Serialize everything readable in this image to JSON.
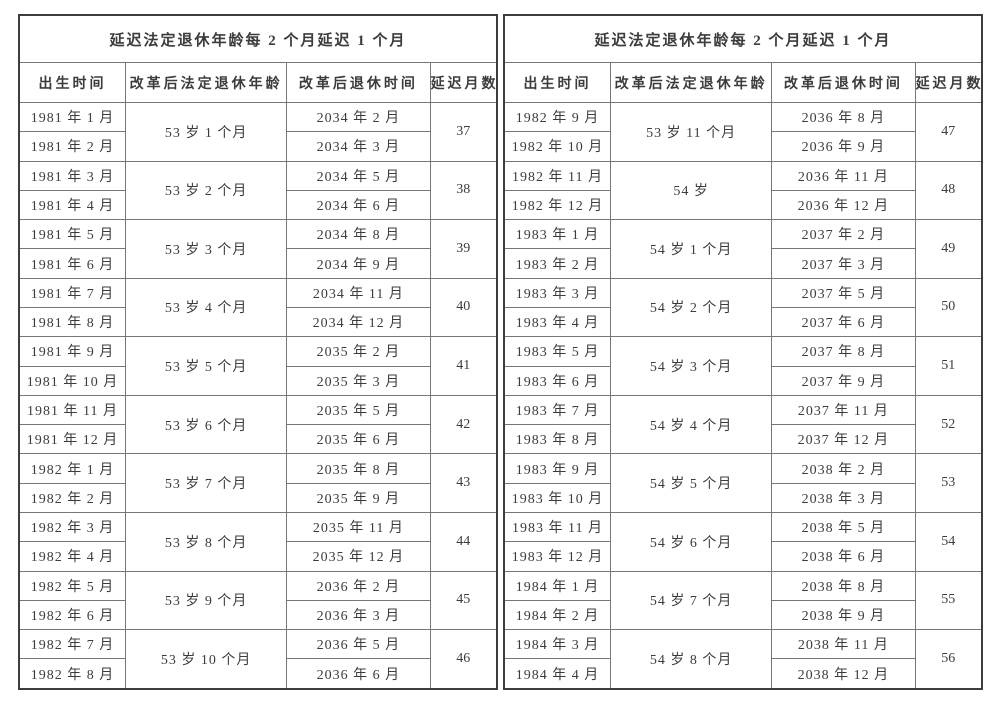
{
  "style": {
    "background": "#ffffff",
    "outer_border_color": "#3d3d3d",
    "inner_border_color": "#767676",
    "text_color": "#3c3c3c"
  },
  "tables": [
    {
      "title": "延迟法定退休年龄每 2 个月延迟 1 个月",
      "headers": [
        "出生时间",
        "改革后法定退休年龄",
        "改革后退休时间",
        "延迟月数"
      ],
      "groups": [
        {
          "births": [
            "1981 年 1 月",
            "1981 年 2 月"
          ],
          "age": "53 岁 1 个月",
          "retires": [
            "2034 年 2 月",
            "2034 年 3 月"
          ],
          "delay": "37"
        },
        {
          "births": [
            "1981 年 3 月",
            "1981 年 4 月"
          ],
          "age": "53 岁 2 个月",
          "retires": [
            "2034 年 5 月",
            "2034 年 6 月"
          ],
          "delay": "38"
        },
        {
          "births": [
            "1981 年 5 月",
            "1981 年 6 月"
          ],
          "age": "53 岁 3 个月",
          "retires": [
            "2034 年 8 月",
            "2034 年 9 月"
          ],
          "delay": "39"
        },
        {
          "births": [
            "1981 年 7 月",
            "1981 年 8 月"
          ],
          "age": "53 岁 4 个月",
          "retires": [
            "2034 年 11 月",
            "2034 年 12 月"
          ],
          "delay": "40"
        },
        {
          "births": [
            "1981 年 9 月",
            "1981 年 10 月"
          ],
          "age": "53 岁 5 个月",
          "retires": [
            "2035 年 2 月",
            "2035 年 3 月"
          ],
          "delay": "41"
        },
        {
          "births": [
            "1981 年 11 月",
            "1981 年 12 月"
          ],
          "age": "53 岁 6 个月",
          "retires": [
            "2035 年 5 月",
            "2035 年 6 月"
          ],
          "delay": "42"
        },
        {
          "births": [
            "1982 年 1 月",
            "1982 年 2 月"
          ],
          "age": "53 岁 7 个月",
          "retires": [
            "2035 年 8 月",
            "2035 年 9 月"
          ],
          "delay": "43"
        },
        {
          "births": [
            "1982 年 3 月",
            "1982 年 4 月"
          ],
          "age": "53 岁 8 个月",
          "retires": [
            "2035 年 11 月",
            "2035 年 12 月"
          ],
          "delay": "44"
        },
        {
          "births": [
            "1982 年 5 月",
            "1982 年 6 月"
          ],
          "age": "53 岁 9 个月",
          "retires": [
            "2036 年 2 月",
            "2036 年 3 月"
          ],
          "delay": "45"
        },
        {
          "births": [
            "1982 年 7 月",
            "1982 年 8 月"
          ],
          "age": "53 岁 10 个月",
          "retires": [
            "2036 年 5 月",
            "2036 年 6 月"
          ],
          "delay": "46"
        }
      ]
    },
    {
      "title": "延迟法定退休年龄每 2 个月延迟 1 个月",
      "headers": [
        "出生时间",
        "改革后法定退休年龄",
        "改革后退休时间",
        "延迟月数"
      ],
      "groups": [
        {
          "births": [
            "1982 年 9 月",
            "1982 年 10 月"
          ],
          "age": "53 岁 11 个月",
          "retires": [
            "2036 年 8 月",
            "2036 年 9 月"
          ],
          "delay": "47"
        },
        {
          "births": [
            "1982 年 11 月",
            "1982 年 12 月"
          ],
          "age": "54 岁",
          "retires": [
            "2036 年 11 月",
            "2036 年 12 月"
          ],
          "delay": "48"
        },
        {
          "births": [
            "1983 年 1 月",
            "1983 年 2 月"
          ],
          "age": "54 岁 1 个月",
          "retires": [
            "2037 年 2 月",
            "2037 年 3 月"
          ],
          "delay": "49"
        },
        {
          "births": [
            "1983 年 3 月",
            "1983 年 4 月"
          ],
          "age": "54 岁 2 个月",
          "retires": [
            "2037 年 5 月",
            "2037 年 6 月"
          ],
          "delay": "50"
        },
        {
          "births": [
            "1983 年 5 月",
            "1983 年 6 月"
          ],
          "age": "54 岁 3 个月",
          "retires": [
            "2037 年 8 月",
            "2037 年 9 月"
          ],
          "delay": "51"
        },
        {
          "births": [
            "1983 年 7 月",
            "1983 年 8 月"
          ],
          "age": "54 岁 4 个月",
          "retires": [
            "2037 年 11 月",
            "2037 年 12 月"
          ],
          "delay": "52"
        },
        {
          "births": [
            "1983 年 9 月",
            "1983 年 10 月"
          ],
          "age": "54 岁 5 个月",
          "retires": [
            "2038 年 2 月",
            "2038 年 3 月"
          ],
          "delay": "53"
        },
        {
          "births": [
            "1983 年 11 月",
            "1983 年 12 月"
          ],
          "age": "54 岁 6 个月",
          "retires": [
            "2038 年 5 月",
            "2038 年 6 月"
          ],
          "delay": "54"
        },
        {
          "births": [
            "1984 年 1 月",
            "1984 年 2 月"
          ],
          "age": "54 岁 7 个月",
          "retires": [
            "2038 年 8 月",
            "2038 年 9 月"
          ],
          "delay": "55"
        },
        {
          "births": [
            "1984 年 3 月",
            "1984 年 4 月"
          ],
          "age": "54 岁 8 个月",
          "retires": [
            "2038 年 11 月",
            "2038 年 12 月"
          ],
          "delay": "56"
        }
      ]
    }
  ]
}
